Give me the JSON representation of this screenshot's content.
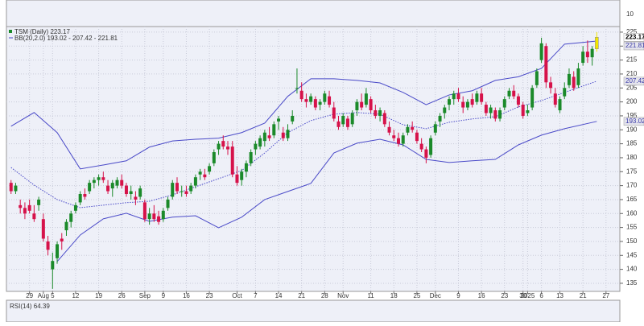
{
  "chart_data": {
    "type": "candlestick",
    "legend": [
      "TSM (Daily) 223.17",
      "BB(20,2.0) 193.02 - 207.42 - 221.81"
    ],
    "rsi_label": "RSI(14) 64.39",
    "upper_panel_ticks": [
      10
    ],
    "up_color": "#1b8a2a",
    "down_color": "#d6124a",
    "last_color": "#f2e600",
    "band_color": "#4a4ac8",
    "xlim": [
      -1,
      132
    ],
    "ylim": [
      132.1,
      227
    ],
    "yticks": [
      135,
      140,
      145,
      150,
      155,
      160,
      165,
      170,
      175,
      180,
      185,
      190,
      195,
      200,
      205,
      210,
      215,
      220,
      225
    ],
    "grid": true,
    "xticks": [
      {
        "value": 4,
        "label": "29"
      },
      {
        "value": 7,
        "label": "Aug"
      },
      {
        "value": 9,
        "label": "5"
      },
      {
        "value": 14,
        "label": "12"
      },
      {
        "value": 19,
        "label": "19"
      },
      {
        "value": 24,
        "label": "26"
      },
      {
        "value": 29,
        "label": "Sep"
      },
      {
        "value": 33,
        "label": "9"
      },
      {
        "value": 38,
        "label": "16"
      },
      {
        "value": 43,
        "label": "23"
      },
      {
        "value": 49,
        "label": "Oct"
      },
      {
        "value": 53,
        "label": "7"
      },
      {
        "value": 58,
        "label": "14"
      },
      {
        "value": 63,
        "label": "21"
      },
      {
        "value": 68,
        "label": "28"
      },
      {
        "value": 72,
        "label": "Nov"
      },
      {
        "value": 78,
        "label": "11"
      },
      {
        "value": 83,
        "label": "18"
      },
      {
        "value": 88,
        "label": "25"
      },
      {
        "value": 92,
        "label": "Dec"
      },
      {
        "value": 97,
        "label": "9"
      },
      {
        "value": 102,
        "label": "16"
      },
      {
        "value": 107,
        "label": "23"
      },
      {
        "value": 111,
        "label": "30"
      },
      {
        "value": 112,
        "label": "2025"
      },
      {
        "value": 115,
        "label": "6"
      },
      {
        "value": 119,
        "label": "13"
      },
      {
        "value": 124,
        "label": "21"
      },
      {
        "value": 129,
        "label": "27"
      }
    ],
    "price_tags": [
      223.17,
      221.81,
      207.42,
      193.02
    ],
    "candles": [
      [
        171,
        172,
        167,
        168
      ],
      [
        168,
        171,
        167,
        170
      ],
      [
        163,
        165,
        160,
        162
      ],
      [
        162,
        164,
        158,
        160
      ],
      [
        163,
        165,
        160,
        161
      ],
      [
        160,
        163,
        157,
        158
      ],
      [
        163,
        166,
        161,
        165
      ],
      [
        158,
        160,
        150,
        151
      ],
      [
        150,
        152,
        145,
        147
      ],
      [
        140,
        146,
        133,
        143
      ],
      [
        144,
        150,
        142,
        149
      ],
      [
        151,
        153,
        147,
        150
      ],
      [
        154,
        158,
        152,
        157
      ],
      [
        157,
        161,
        155,
        160
      ],
      [
        161,
        164,
        160,
        163
      ],
      [
        164,
        168,
        163,
        167
      ],
      [
        167,
        169,
        165,
        166
      ],
      [
        168,
        172,
        167,
        171
      ],
      [
        171,
        173,
        169,
        172
      ],
      [
        172,
        174,
        170,
        173
      ],
      [
        173,
        175,
        171,
        172
      ],
      [
        170,
        172,
        167,
        168
      ],
      [
        169,
        172,
        166,
        171
      ],
      [
        170,
        173,
        169,
        172
      ],
      [
        172,
        174,
        169,
        170
      ],
      [
        170,
        171,
        166,
        167
      ],
      [
        167,
        170,
        165,
        168
      ],
      [
        166,
        168,
        163,
        165
      ],
      [
        166,
        170,
        165,
        169
      ],
      [
        164,
        165,
        157,
        158
      ],
      [
        158,
        162,
        156,
        160
      ],
      [
        160,
        163,
        157,
        158
      ],
      [
        159,
        161,
        156,
        157
      ],
      [
        158,
        162,
        157,
        161
      ],
      [
        162,
        166,
        161,
        165
      ],
      [
        166,
        172,
        165,
        171
      ],
      [
        171,
        173,
        167,
        168
      ],
      [
        168,
        170,
        166,
        168
      ],
      [
        168,
        170,
        166,
        167
      ],
      [
        168,
        171,
        167,
        170
      ],
      [
        170,
        174,
        169,
        173
      ],
      [
        174,
        176,
        172,
        175
      ],
      [
        174,
        176,
        172,
        173
      ],
      [
        175,
        178,
        174,
        177
      ],
      [
        178,
        183,
        177,
        182
      ],
      [
        183,
        186,
        181,
        185
      ],
      [
        186,
        188,
        183,
        184
      ],
      [
        184,
        186,
        181,
        183
      ],
      [
        184,
        186,
        173,
        174
      ],
      [
        174,
        177,
        170,
        171
      ],
      [
        172,
        176,
        170,
        175
      ],
      [
        175,
        179,
        173,
        178
      ],
      [
        178,
        183,
        177,
        182
      ],
      [
        183,
        186,
        181,
        185
      ],
      [
        184,
        188,
        183,
        187
      ],
      [
        186,
        190,
        184,
        189
      ],
      [
        188,
        191,
        186,
        187
      ],
      [
        188,
        193,
        187,
        192
      ],
      [
        193,
        195,
        190,
        194
      ],
      [
        189,
        191,
        186,
        187
      ],
      [
        187,
        192,
        186,
        190
      ],
      [
        193,
        197,
        192,
        195
      ],
      [
        205,
        212,
        203,
        205
      ],
      [
        204,
        207,
        200,
        201
      ],
      [
        201,
        203,
        198,
        200
      ],
      [
        200,
        203,
        199,
        202
      ],
      [
        201,
        202,
        197,
        198
      ],
      [
        199,
        201,
        197,
        200
      ],
      [
        200,
        204,
        199,
        203
      ],
      [
        202,
        204,
        198,
        199
      ],
      [
        198,
        200,
        193,
        194
      ],
      [
        193,
        195,
        190,
        191
      ],
      [
        192,
        196,
        191,
        195
      ],
      [
        194,
        195,
        190,
        191
      ],
      [
        192,
        197,
        191,
        196
      ],
      [
        197,
        201,
        195,
        200
      ],
      [
        200,
        203,
        197,
        198
      ],
      [
        199,
        205,
        198,
        203
      ],
      [
        201,
        202,
        196,
        197
      ],
      [
        197,
        199,
        194,
        195
      ],
      [
        195,
        198,
        193,
        197
      ],
      [
        196,
        197,
        191,
        192
      ],
      [
        191,
        193,
        188,
        189
      ],
      [
        188,
        190,
        186,
        187
      ],
      [
        187,
        189,
        184,
        185
      ],
      [
        185,
        189,
        184,
        188
      ],
      [
        189,
        192,
        188,
        191
      ],
      [
        191,
        193,
        189,
        190
      ],
      [
        189,
        190,
        185,
        186
      ],
      [
        185,
        187,
        182,
        183
      ],
      [
        183,
        184,
        178,
        180
      ],
      [
        181,
        188,
        180,
        187
      ],
      [
        189,
        193,
        188,
        192
      ],
      [
        193,
        196,
        191,
        195
      ],
      [
        196,
        199,
        194,
        198
      ],
      [
        199,
        202,
        197,
        201
      ],
      [
        201,
        204,
        199,
        203
      ],
      [
        203,
        205,
        200,
        201
      ],
      [
        200,
        202,
        196,
        198
      ],
      [
        198,
        201,
        197,
        200
      ],
      [
        201,
        203,
        198,
        199
      ],
      [
        200,
        204,
        199,
        203
      ],
      [
        203,
        205,
        199,
        200
      ],
      [
        199,
        200,
        195,
        196
      ],
      [
        196,
        199,
        194,
        198
      ],
      [
        197,
        198,
        193,
        194
      ],
      [
        194,
        198,
        193,
        197
      ],
      [
        198,
        202,
        197,
        201
      ],
      [
        202,
        205,
        201,
        204
      ],
      [
        204,
        206,
        201,
        202
      ],
      [
        202,
        203,
        198,
        199
      ],
      [
        199,
        200,
        194,
        195
      ],
      [
        196,
        199,
        195,
        197
      ],
      [
        198,
        206,
        197,
        205
      ],
      [
        206,
        212,
        205,
        211
      ],
      [
        215,
        223,
        214,
        221
      ],
      [
        220,
        221,
        205,
        207
      ],
      [
        207,
        209,
        203,
        205
      ],
      [
        203,
        205,
        198,
        199
      ],
      [
        197,
        202,
        196,
        201
      ],
      [
        202,
        207,
        201,
        205
      ],
      [
        206,
        212,
        205,
        210
      ],
      [
        209,
        211,
        204,
        205
      ],
      [
        206,
        214,
        205,
        212
      ],
      [
        214,
        220,
        213,
        218
      ],
      [
        218,
        222,
        214,
        216
      ],
      [
        216,
        220,
        213,
        219
      ],
      [
        219,
        225,
        218,
        223.17
      ]
    ],
    "bb_x": [
      0,
      5,
      10,
      15,
      20,
      25,
      30,
      35,
      40,
      45,
      50,
      55,
      60,
      65,
      70,
      75,
      80,
      85,
      90,
      95,
      100,
      105,
      110,
      115,
      120,
      127
    ],
    "bb_upper": [
      191.3,
      196.2,
      189,
      176,
      177.4,
      178.9,
      183.8,
      186,
      186.6,
      187,
      189,
      192.4,
      202,
      208.3,
      208.3,
      207.7,
      206.8,
      203.4,
      199,
      202.5,
      204,
      207.7,
      209,
      212,
      220.7,
      221.81
    ],
    "bb_middle": [
      176.5,
      170.2,
      165,
      162.1,
      163,
      163.9,
      164.4,
      166.7,
      169.6,
      172.5,
      175.4,
      181.7,
      189,
      193.3,
      195.6,
      196.2,
      195.6,
      191.8,
      190.4,
      192.7,
      193.9,
      194.7,
      198.2,
      200.5,
      203.4,
      207.42
    ],
    "bb_lower": [
      null,
      null,
      142.8,
      152.3,
      158.1,
      160.1,
      157.2,
      158.7,
      159.2,
      154.9,
      158.7,
      165,
      167.9,
      170.8,
      181.7,
      185.2,
      186.6,
      184.6,
      179.4,
      178.3,
      178.9,
      179.4,
      184.6,
      188.1,
      190.4,
      193.02
    ]
  }
}
